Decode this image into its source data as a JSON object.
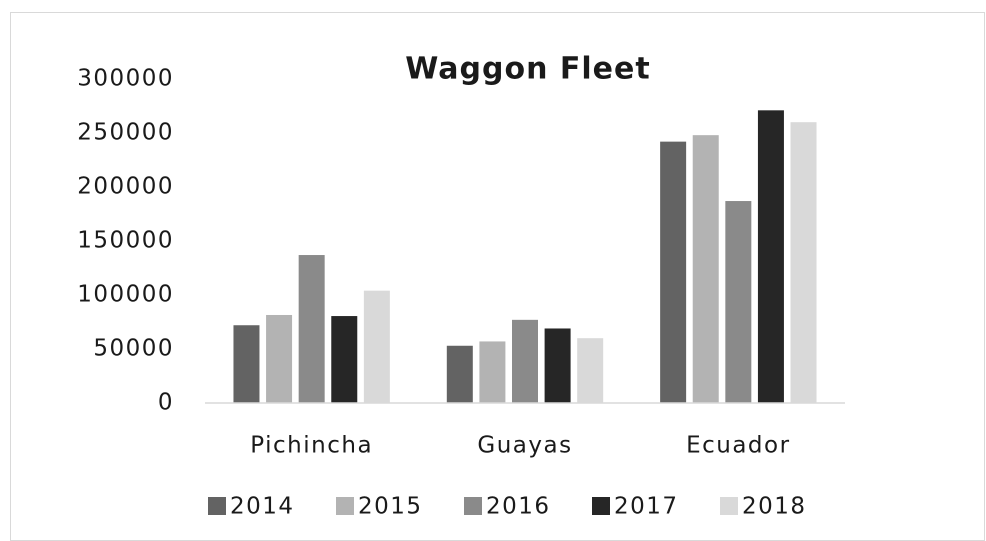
{
  "chart_data": {
    "type": "bar",
    "title": "Waggon Fleet",
    "categories": [
      "Pichincha",
      "Guayas",
      "Ecuador"
    ],
    "series": [
      {
        "name": "2014",
        "color": "#636363",
        "values": [
          72000,
          53000,
          242000
        ]
      },
      {
        "name": "2015",
        "color": "#b3b3b3",
        "values": [
          81500,
          57000,
          248000
        ]
      },
      {
        "name": "2016",
        "color": "#8a8a8a",
        "values": [
          137000,
          77000,
          187000
        ]
      },
      {
        "name": "2017",
        "color": "#262626",
        "values": [
          80500,
          69000,
          271000
        ]
      },
      {
        "name": "2018",
        "color": "#d9d9d9",
        "values": [
          104000,
          60000,
          260000
        ]
      }
    ],
    "ylim": [
      0,
      300000
    ],
    "yticks": [
      0,
      50000,
      100000,
      150000,
      200000,
      250000,
      300000
    ],
    "grid": false,
    "legend": "bottom"
  }
}
